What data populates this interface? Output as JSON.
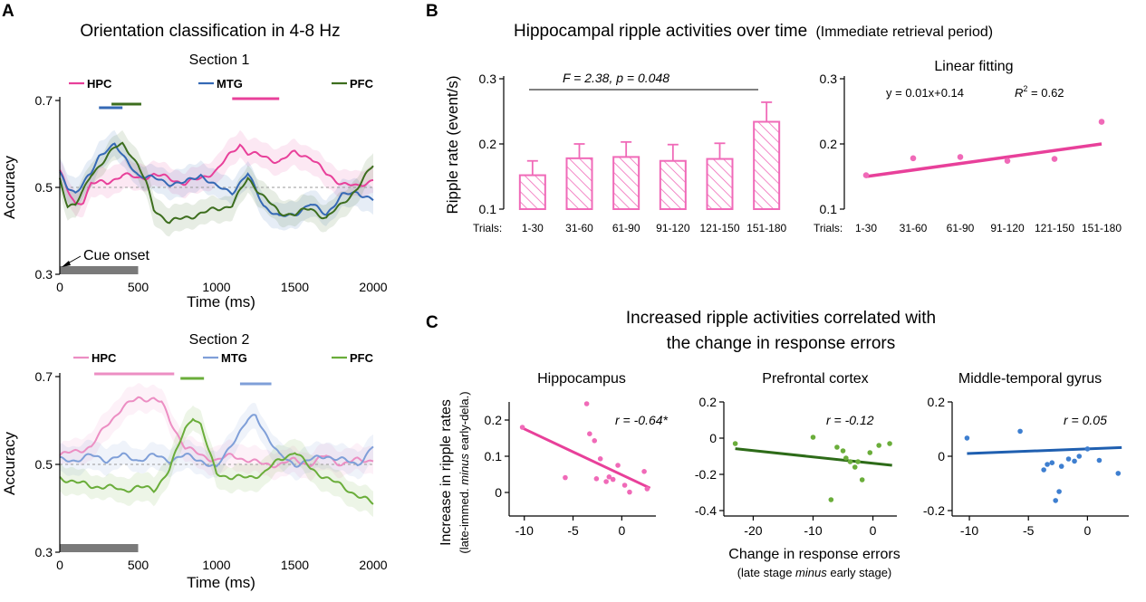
{
  "panels": {
    "a": "A",
    "b": "B",
    "c": "C"
  },
  "colors": {
    "hpc": "#e8409a",
    "mtg": "#3569b5",
    "pfc": "#3d6e1e",
    "hpc2": "#ec8ec3",
    "mtg2": "#7f9fd8",
    "pfc2": "#6aad3a",
    "bar": "#f06ab8",
    "cue": "#7a7a7a",
    "dashed": "#9a9a9a",
    "c_pfc": "#2d6b18",
    "c_mtg": "#1f5fb0"
  },
  "chart_data": [
    {
      "id": "a1",
      "type": "line",
      "title": "Orientation classification in 4-8 Hz",
      "subtitle": "Section 1",
      "xlabel": "Time (ms)",
      "ylabel": "Accuracy",
      "xlim": [
        0,
        2000
      ],
      "ylim": [
        0.3,
        0.7
      ],
      "xticks": [
        "0",
        "500",
        "1000",
        "1500",
        "2000"
      ],
      "yticks": [
        "0.3",
        "0.5",
        "0.7"
      ],
      "chance": 0.5,
      "cue_label": "Cue onset",
      "cue_interval": [
        0,
        500
      ],
      "series": [
        {
          "name": "HPC",
          "x": [
            0,
            50,
            100,
            150,
            200,
            300,
            400,
            500,
            600,
            700,
            800,
            900,
            1000,
            1100,
            1150,
            1200,
            1300,
            1400,
            1500,
            1600,
            1700,
            1800,
            1900,
            2000
          ],
          "values": [
            0.54,
            0.49,
            0.46,
            0.47,
            0.51,
            0.51,
            0.53,
            0.52,
            0.53,
            0.52,
            0.51,
            0.52,
            0.54,
            0.58,
            0.6,
            0.58,
            0.57,
            0.56,
            0.58,
            0.57,
            0.53,
            0.51,
            0.5,
            0.52
          ],
          "sig": [
            [
              1100,
              1400
            ]
          ]
        },
        {
          "name": "MTG",
          "x": [
            0,
            50,
            100,
            200,
            250,
            300,
            350,
            400,
            500,
            600,
            700,
            800,
            900,
            1000,
            1100,
            1200,
            1300,
            1400,
            1500,
            1600,
            1700,
            1800,
            1900,
            2000
          ],
          "values": [
            0.53,
            0.5,
            0.49,
            0.53,
            0.57,
            0.59,
            0.6,
            0.57,
            0.53,
            0.52,
            0.51,
            0.51,
            0.53,
            0.5,
            0.49,
            0.53,
            0.46,
            0.43,
            0.44,
            0.46,
            0.44,
            0.48,
            0.49,
            0.47
          ],
          "sig": [
            [
              250,
              400
            ]
          ]
        },
        {
          "name": "PFC",
          "x": [
            0,
            50,
            100,
            150,
            200,
            300,
            350,
            400,
            450,
            500,
            550,
            600,
            700,
            800,
            900,
            1000,
            1100,
            1200,
            1300,
            1400,
            1500,
            1600,
            1700,
            1800,
            1900,
            2000
          ],
          "values": [
            0.52,
            0.46,
            0.46,
            0.49,
            0.53,
            0.57,
            0.59,
            0.6,
            0.58,
            0.55,
            0.51,
            0.45,
            0.42,
            0.43,
            0.44,
            0.45,
            0.46,
            0.52,
            0.48,
            0.44,
            0.44,
            0.45,
            0.43,
            0.46,
            0.5,
            0.55
          ],
          "sig": [
            [
              330,
              520
            ]
          ]
        }
      ]
    },
    {
      "id": "a2",
      "type": "line",
      "subtitle": "Section 2",
      "xlabel": "Time (ms)",
      "ylabel": "Accuracy",
      "xlim": [
        0,
        2000
      ],
      "ylim": [
        0.3,
        0.7
      ],
      "xticks": [
        "0",
        "500",
        "1000",
        "1500",
        "2000"
      ],
      "yticks": [
        "0.3",
        "0.5",
        "0.7"
      ],
      "chance": 0.5,
      "cue_interval": [
        0,
        500
      ],
      "series": [
        {
          "name": "HPC",
          "x": [
            0,
            100,
            200,
            300,
            400,
            500,
            600,
            650,
            700,
            800,
            900,
            1000,
            1100,
            1200,
            1300,
            1400,
            1500,
            1600,
            1700,
            1800,
            1900,
            2000
          ],
          "values": [
            0.52,
            0.53,
            0.54,
            0.59,
            0.63,
            0.65,
            0.65,
            0.64,
            0.6,
            0.54,
            0.52,
            0.51,
            0.52,
            0.51,
            0.5,
            0.5,
            0.51,
            0.5,
            0.52,
            0.5,
            0.51,
            0.51
          ],
          "sig": [
            [
              220,
              730
            ]
          ]
        },
        {
          "name": "MTG",
          "x": [
            0,
            100,
            200,
            300,
            400,
            500,
            600,
            700,
            800,
            900,
            1000,
            1100,
            1200,
            1250,
            1300,
            1400,
            1500,
            1600,
            1700,
            1800,
            1900,
            2000
          ],
          "values": [
            0.51,
            0.51,
            0.52,
            0.51,
            0.52,
            0.51,
            0.52,
            0.51,
            0.52,
            0.51,
            0.49,
            0.55,
            0.6,
            0.61,
            0.58,
            0.52,
            0.5,
            0.51,
            0.52,
            0.51,
            0.5,
            0.54
          ],
          "sig": [
            [
              1150,
              1350
            ]
          ]
        },
        {
          "name": "PFC",
          "x": [
            0,
            100,
            200,
            300,
            400,
            500,
            600,
            700,
            800,
            850,
            900,
            950,
            1000,
            1100,
            1200,
            1300,
            1400,
            1500,
            1600,
            1700,
            1800,
            1900,
            2000
          ],
          "values": [
            0.47,
            0.46,
            0.45,
            0.45,
            0.44,
            0.45,
            0.44,
            0.49,
            0.58,
            0.61,
            0.59,
            0.53,
            0.48,
            0.47,
            0.47,
            0.48,
            0.51,
            0.53,
            0.49,
            0.47,
            0.45,
            0.43,
            0.41
          ],
          "sig": [
            [
              770,
              920
            ]
          ]
        }
      ]
    },
    {
      "id": "b",
      "type": "bar",
      "title": "Hippocampal ripple activities over time",
      "title_note": "(Immediate retrieval period)",
      "ylabel": "Ripple rate (event/s)",
      "xprefix": "Trials:",
      "categories": [
        "1-30",
        "31-60",
        "61-90",
        "91-120",
        "121-150",
        "151-180"
      ],
      "values": [
        0.152,
        0.178,
        0.18,
        0.174,
        0.177,
        0.234
      ],
      "errors": [
        0.022,
        0.022,
        0.023,
        0.025,
        0.024,
        0.03
      ],
      "ylim": [
        0.1,
        0.3
      ],
      "yticks": [
        "0.1",
        "0.2",
        "0.3"
      ],
      "stat": "F = 2.38, p = 0.048"
    },
    {
      "id": "b_fit",
      "type": "scatter",
      "title": "Linear fitting",
      "xprefix": "Trials:",
      "categories": [
        "1-30",
        "31-60",
        "61-90",
        "91-120",
        "121-150",
        "151-180"
      ],
      "values": [
        0.152,
        0.178,
        0.18,
        0.174,
        0.177,
        0.234
      ],
      "fit": {
        "slope": 0.01,
        "intercept": 0.14
      },
      "equation": "y = 0.01x+0.14",
      "r2_label": "R",
      "r2_sup": "2",
      "r2_value": " = 0.62",
      "ylim": [
        0.1,
        0.3
      ],
      "yticks": [
        "0.1",
        "0.2",
        "0.3"
      ]
    },
    {
      "id": "c",
      "type": "scatter",
      "title_line1": "Increased ripple activities correlated with",
      "title_line2": "the change in response errors",
      "ylabel_line1": "Increase in ripple rates",
      "ylabel_line2_pre": "(late-immed. ",
      "ylabel_line2_em": "minus",
      "ylabel_line2_post": " early-dela.)",
      "xlabel_line1": "Change in response errors",
      "xlabel_line2_pre": "(late stage ",
      "xlabel_line2_em": "minus",
      "xlabel_line2_post": " early stage)",
      "panels": [
        {
          "name": "Hippocampus",
          "r": "r = -0.64*",
          "xlim": [
            -11,
            3.5
          ],
          "ylim": [
            -0.05,
            0.25
          ],
          "xticks": [
            -10,
            -5,
            0
          ],
          "xtick_labels": [
            "-10",
            "-5",
            "0"
          ],
          "yticks": [
            0,
            0.1,
            0.2
          ],
          "ytick_labels": [
            "0",
            "0.1",
            "0.2"
          ],
          "x": [
            -10.2,
            -3.6,
            -3.3,
            -2.8,
            -2.6,
            -2.2,
            -1.6,
            -0.9,
            -0.4,
            0.3,
            0.8,
            2.3,
            2.6,
            -5.8,
            -1.3
          ],
          "y": [
            0.18,
            0.245,
            0.162,
            0.143,
            0.038,
            0.093,
            0.03,
            0.036,
            0.075,
            0.02,
            0.001,
            0.058,
            0.01,
            0.041,
            0.043
          ],
          "line": [
            [
              -10.2,
              0.178
            ],
            [
              2.9,
              0.012
            ]
          ]
        },
        {
          "name": "Prefrontal cortex",
          "r": "r = -0.12",
          "xlim": [
            -24,
            4
          ],
          "ylim": [
            -0.4,
            0.2
          ],
          "xticks": [
            -20,
            -10,
            0
          ],
          "xtick_labels": [
            "-20",
            "-10",
            "0"
          ],
          "yticks": [
            -0.4,
            -0.2,
            0,
            0.2
          ],
          "ytick_labels": [
            "-0.4",
            "-0.2",
            "0",
            "0.2"
          ],
          "x": [
            -23,
            -10,
            -7,
            -6,
            -5,
            -4.5,
            -3.8,
            -3,
            -2.5,
            -1.8,
            -0.5,
            1,
            2.8
          ],
          "y": [
            -0.03,
            0.005,
            -0.34,
            -0.05,
            -0.07,
            -0.11,
            -0.13,
            -0.16,
            -0.13,
            -0.23,
            -0.08,
            -0.04,
            -0.03
          ],
          "line": [
            [
              -23,
              -0.058
            ],
            [
              3.2,
              -0.15
            ]
          ]
        },
        {
          "name": "Middle-temporal gyrus",
          "r": "r = 0.05",
          "xlim": [
            -11,
            3.5
          ],
          "ylim": [
            -0.2,
            0.2
          ],
          "xticks": [
            -10,
            -5,
            0
          ],
          "xtick_labels": [
            "-10",
            "-5",
            "0"
          ],
          "yticks": [
            -0.2,
            0,
            0.2
          ],
          "ytick_labels": [
            "-0.2",
            "0",
            "0.2"
          ],
          "x": [
            -10.2,
            -5.7,
            -3.7,
            -3.4,
            -3.0,
            -2.7,
            -2.4,
            -2.2,
            -1.6,
            -1.1,
            -0.7,
            0,
            1,
            2.6
          ],
          "y": [
            0.067,
            0.092,
            -0.05,
            -0.03,
            -0.024,
            -0.163,
            -0.13,
            -0.037,
            -0.01,
            -0.018,
            0.0,
            0.027,
            -0.015,
            -0.063
          ],
          "line": [
            [
              -10.2,
              0.01
            ],
            [
              2.9,
              0.032
            ]
          ]
        }
      ]
    }
  ]
}
